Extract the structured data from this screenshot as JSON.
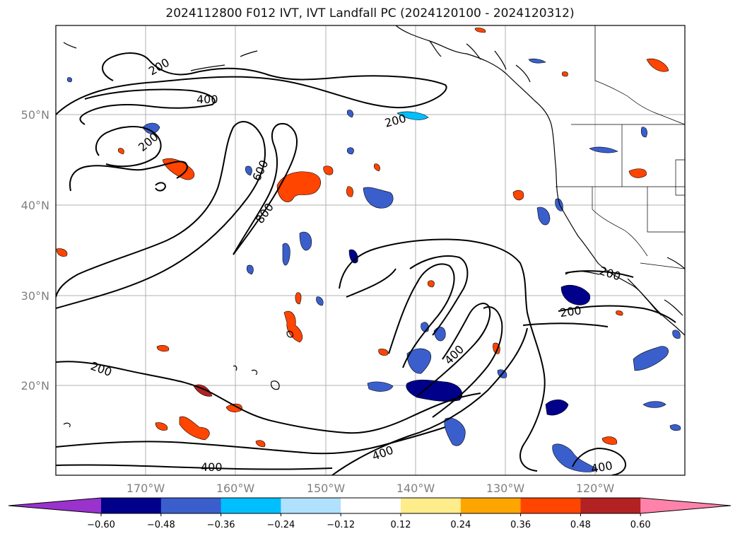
{
  "title": "2024112800 F012 IVT, IVT Landfall PC (2024120100 - 2024120312)",
  "lat_labels": [
    "50°N",
    "40°N",
    "30°N",
    "20°N"
  ],
  "lon_labels": [
    "170°W",
    "160°W",
    "150°W",
    "140°W",
    "130°W",
    "120°W"
  ],
  "ivt_contour_labels": [
    "200",
    "400",
    "200",
    "200",
    "600",
    "800",
    "200",
    "200",
    "400",
    "200",
    "400",
    "400",
    "400"
  ],
  "colorbar": {
    "ticks": [
      "−0.60",
      "−0.48",
      "−0.36",
      "−0.24",
      "−0.12",
      "0.12",
      "0.24",
      "0.36",
      "0.48",
      "0.60"
    ],
    "colors": [
      "#9a32cd",
      "#00008b",
      "#3a5fcd",
      "#00bfff",
      "#b0e2ff",
      "#ffffff",
      "#ffec8b",
      "#ffa500",
      "#ff4500",
      "#b22222",
      "#ff82ab"
    ]
  },
  "colors": {
    "contour": "#000000",
    "grid": "#b0b0b0",
    "coast": "#000000"
  }
}
